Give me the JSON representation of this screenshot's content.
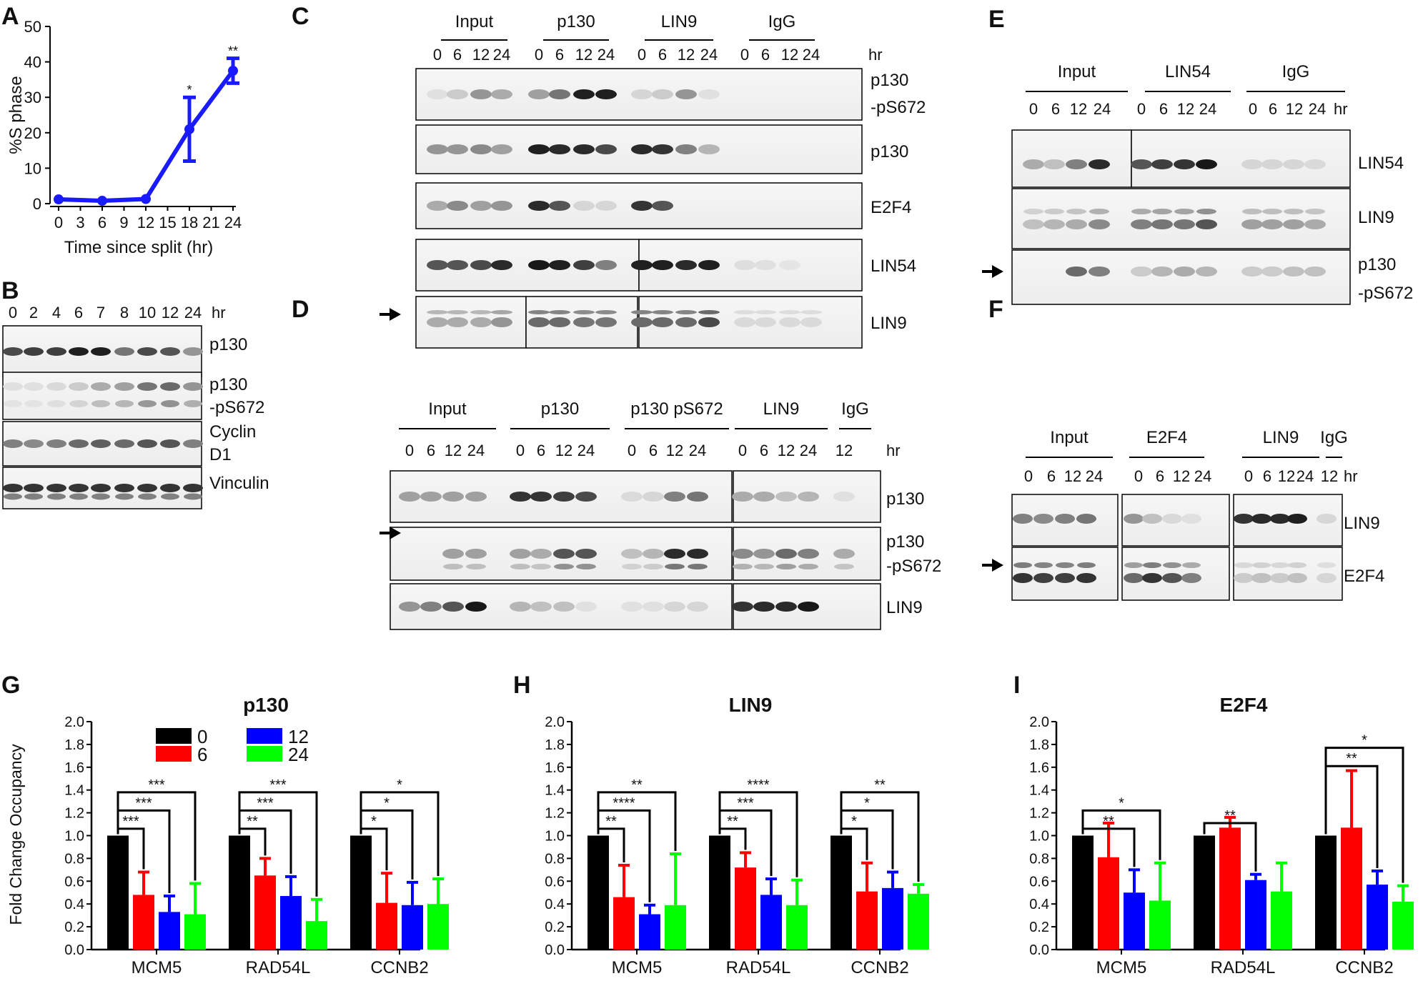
{
  "panel_letters": [
    "A",
    "B",
    "C",
    "D",
    "E",
    "F",
    "G",
    "H",
    "I"
  ],
  "colors": {
    "line": "#1a1aff",
    "series": [
      "#000000",
      "#ff0000",
      "#0000ff",
      "#00ff00"
    ]
  },
  "hr_unit": "hr",
  "panel_a": {
    "ylabel": "%S phase",
    "xlabel": "Time since split (hr)",
    "yticks": [
      "0",
      "10",
      "20",
      "30",
      "40",
      "50"
    ],
    "xticks": [
      "0",
      "3",
      "6",
      "9",
      "12",
      "15",
      "18",
      "21",
      "24"
    ]
  },
  "panel_b": {
    "timepoints": [
      "0",
      "2",
      "4",
      "6",
      "7",
      "8",
      "10",
      "12",
      "24"
    ],
    "blots": [
      {
        "label": "p130"
      },
      {
        "label": "p130",
        "label2": "-pS672"
      },
      {
        "label": "Cyclin",
        "label2": "D1"
      },
      {
        "label": "Vinculin"
      }
    ]
  },
  "panel_c": {
    "groups": [
      "Input",
      "p130",
      "LIN9",
      "IgG"
    ],
    "timepoints": [
      "0",
      "6",
      "12",
      "24"
    ],
    "blots": [
      {
        "label": "p130",
        "label2": "-pS672"
      },
      {
        "label": "p130"
      },
      {
        "label": "E2F4"
      },
      {
        "label": "LIN54"
      },
      {
        "label": "LIN9"
      }
    ]
  },
  "panel_d": {
    "groups": [
      "Input",
      "p130",
      "p130 pS672",
      "LIN9",
      "IgG"
    ],
    "timepoints": [
      "0",
      "6",
      "12",
      "24"
    ],
    "igg_time": "12",
    "blots": [
      {
        "label": "p130"
      },
      {
        "label": "p130",
        "label2": "-pS672"
      },
      {
        "label": "LIN9"
      }
    ]
  },
  "panel_e": {
    "groups": [
      "Input",
      "LIN54",
      "IgG"
    ],
    "timepoints": [
      "0",
      "6",
      "12",
      "24"
    ],
    "blots": [
      {
        "label": "LIN54"
      },
      {
        "label": "LIN9"
      },
      {
        "label": "p130",
        "label2": "-pS672"
      }
    ]
  },
  "panel_f": {
    "groups": [
      "Input",
      "E2F4",
      "LIN9",
      "IgG"
    ],
    "timepoints": [
      "0",
      "6",
      "12",
      "24"
    ],
    "igg_time": "12",
    "blots": [
      {
        "label": "LIN9"
      },
      {
        "label": "E2F4"
      }
    ]
  },
  "bar_ylabel": "Fold Change Occupancy",
  "bar_yticks": [
    "0.0",
    "0.2",
    "0.4",
    "0.6",
    "0.8",
    "1.0",
    "1.2",
    "1.4",
    "1.6",
    "1.8",
    "2.0"
  ],
  "chart_data": [
    {
      "type": "line",
      "x": [
        0,
        6,
        12,
        18,
        24
      ],
      "y": [
        1.2,
        0.8,
        1.3,
        21,
        37.5
      ],
      "error": [
        0.5,
        0.5,
        0.5,
        9,
        3.5
      ],
      "significance": [
        "",
        "",
        "",
        "*",
        "**"
      ],
      "xlabel": "Time since split (hr)",
      "ylabel": "%S phase",
      "xlim": [
        0,
        24
      ],
      "ylim": [
        0,
        50
      ]
    },
    {
      "type": "bar",
      "title": "p130",
      "categories": [
        "MCM5",
        "RAD54L",
        "CCNB2"
      ],
      "series": [
        {
          "name": "0",
          "values": [
            1.0,
            1.0,
            1.0
          ],
          "error": [
            0,
            0,
            0
          ]
        },
        {
          "name": "6",
          "values": [
            0.48,
            0.65,
            0.41
          ],
          "error": [
            0.2,
            0.15,
            0.26
          ]
        },
        {
          "name": "12",
          "values": [
            0.33,
            0.47,
            0.39
          ],
          "error": [
            0.14,
            0.17,
            0.2
          ]
        },
        {
          "name": "24",
          "values": [
            0.31,
            0.25,
            0.4
          ],
          "error": [
            0.27,
            0.19,
            0.22
          ]
        }
      ],
      "significance": [
        [
          "***",
          "***",
          "***"
        ],
        [
          "**",
          "***",
          "***"
        ],
        [
          "*",
          "*",
          "*"
        ]
      ],
      "ylabel": "Fold Change Occupancy",
      "ylim": [
        0,
        2.0
      ],
      "legend": "top-left"
    },
    {
      "type": "bar",
      "title": "LIN9",
      "categories": [
        "MCM5",
        "RAD54L",
        "CCNB2"
      ],
      "series": [
        {
          "name": "0",
          "values": [
            1.0,
            1.0,
            1.0
          ],
          "error": [
            0,
            0,
            0
          ]
        },
        {
          "name": "6",
          "values": [
            0.46,
            0.72,
            0.51
          ],
          "error": [
            0.28,
            0.13,
            0.25
          ]
        },
        {
          "name": "12",
          "values": [
            0.31,
            0.48,
            0.54
          ],
          "error": [
            0.08,
            0.14,
            0.14
          ]
        },
        {
          "name": "24",
          "values": [
            0.39,
            0.39,
            0.49
          ],
          "error": [
            0.45,
            0.22,
            0.08
          ]
        }
      ],
      "significance": [
        [
          "**",
          "****",
          "**"
        ],
        [
          "**",
          "***",
          "****"
        ],
        [
          "*",
          "*",
          "**"
        ]
      ],
      "ylim": [
        0,
        2.0
      ]
    },
    {
      "type": "bar",
      "title": "E2F4",
      "categories": [
        "MCM5",
        "RAD54L",
        "CCNB2"
      ],
      "series": [
        {
          "name": "0",
          "values": [
            1.0,
            1.0,
            1.0
          ],
          "error": [
            0,
            0,
            0
          ]
        },
        {
          "name": "6",
          "values": [
            0.81,
            1.07,
            1.07
          ],
          "error": [
            0.3,
            0.09,
            0.5
          ]
        },
        {
          "name": "12",
          "values": [
            0.5,
            0.61,
            0.57
          ],
          "error": [
            0.2,
            0.05,
            0.12
          ]
        },
        {
          "name": "24",
          "values": [
            0.43,
            0.51,
            0.42
          ],
          "error": [
            0.33,
            0.25,
            0.14
          ]
        }
      ],
      "significance": [
        [
          "**",
          "*"
        ],
        [
          "**"
        ],
        [
          "**",
          "*"
        ]
      ],
      "ylim": [
        0,
        2.0
      ]
    }
  ]
}
